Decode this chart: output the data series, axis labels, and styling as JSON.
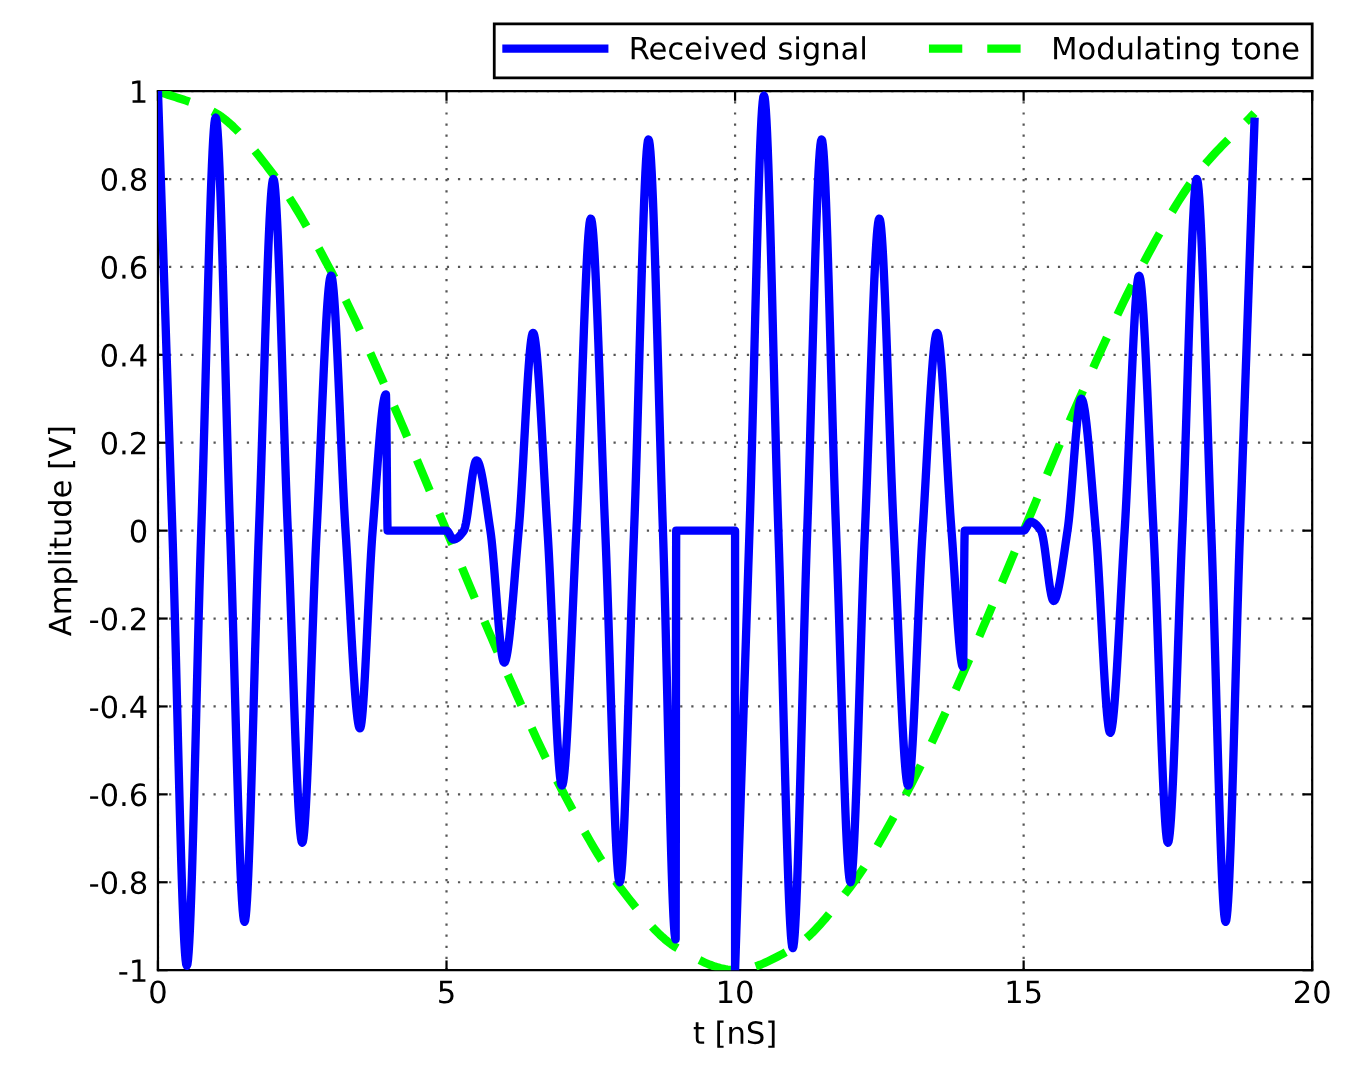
{
  "chart_data": {
    "type": "line",
    "xlabel": "t [nS]",
    "ylabel": "Amplitude [V]",
    "xlim": [
      0,
      20
    ],
    "xticks": [
      0,
      5,
      10,
      15,
      20
    ],
    "ylim": [
      -1,
      1
    ],
    "yticks": [
      -1,
      -0.8,
      -0.6,
      -0.4,
      -0.2,
      0,
      0.2,
      0.4,
      0.6,
      0.8,
      1
    ],
    "grid": true,
    "legend": "top right",
    "series": [
      {
        "name": "Received signal",
        "color": "#0000ff",
        "line_style": "solid",
        "x": [
          0,
          0.25,
          0.5,
          0.75,
          1,
          1.25,
          1.5,
          1.75,
          2,
          2.25,
          2.5,
          2.75,
          3,
          3.25,
          3.5,
          3.72,
          3.95,
          3.98,
          5.0,
          5.12,
          5.3,
          5.52,
          5.76,
          6,
          6.25,
          6.5,
          6.75,
          7,
          7.25,
          7.5,
          7.75,
          8,
          8.25,
          8.5,
          8.75,
          8.97,
          8.98,
          10.0,
          10.0,
          10.25,
          10.5,
          10.75,
          11,
          11.25,
          11.5,
          11.75,
          12,
          12.25,
          12.5,
          12.75,
          13,
          13.25,
          13.5,
          13.75,
          13.95,
          13.98,
          15.0,
          15.12,
          15.3,
          15.52,
          15.76,
          16,
          16.25,
          16.5,
          16.75,
          17,
          17.25,
          17.5,
          17.75,
          18,
          18.25,
          18.5,
          18.75,
          19.0
        ],
        "values": [
          1,
          0,
          -0.99,
          0,
          0.94,
          0,
          -0.89,
          0,
          0.8,
          0,
          -0.71,
          0,
          0.58,
          0,
          -0.45,
          0,
          0.31,
          0,
          0,
          -0.02,
          0,
          0.16,
          0,
          -0.3,
          0,
          0.45,
          0,
          -0.58,
          0,
          0.71,
          0,
          -0.8,
          0,
          0.89,
          0,
          -0.93,
          0,
          0,
          -1,
          0,
          0.99,
          0,
          -0.95,
          0,
          0.89,
          0,
          -0.8,
          0,
          0.71,
          0,
          -0.58,
          0,
          0.45,
          0,
          -0.31,
          0,
          0,
          0.02,
          0,
          -0.16,
          0,
          0.3,
          0,
          -0.46,
          0,
          0.58,
          0,
          -0.71,
          0,
          0.8,
          0,
          -0.89,
          0,
          0.93
        ]
      },
      {
        "name": "Modulating tone",
        "color": "#00ff00",
        "line_style": "dashed",
        "x": [
          0,
          1,
          2,
          3,
          4,
          5,
          6,
          7,
          8,
          9,
          10,
          11,
          12,
          13,
          14,
          15,
          16,
          17,
          18,
          19
        ],
        "values": [
          1,
          0.95,
          0.81,
          0.59,
          0.31,
          0,
          -0.31,
          -0.59,
          -0.81,
          -0.95,
          -1,
          -0.95,
          -0.81,
          -0.59,
          -0.31,
          0,
          0.31,
          0.59,
          0.81,
          0.95
        ]
      }
    ]
  }
}
